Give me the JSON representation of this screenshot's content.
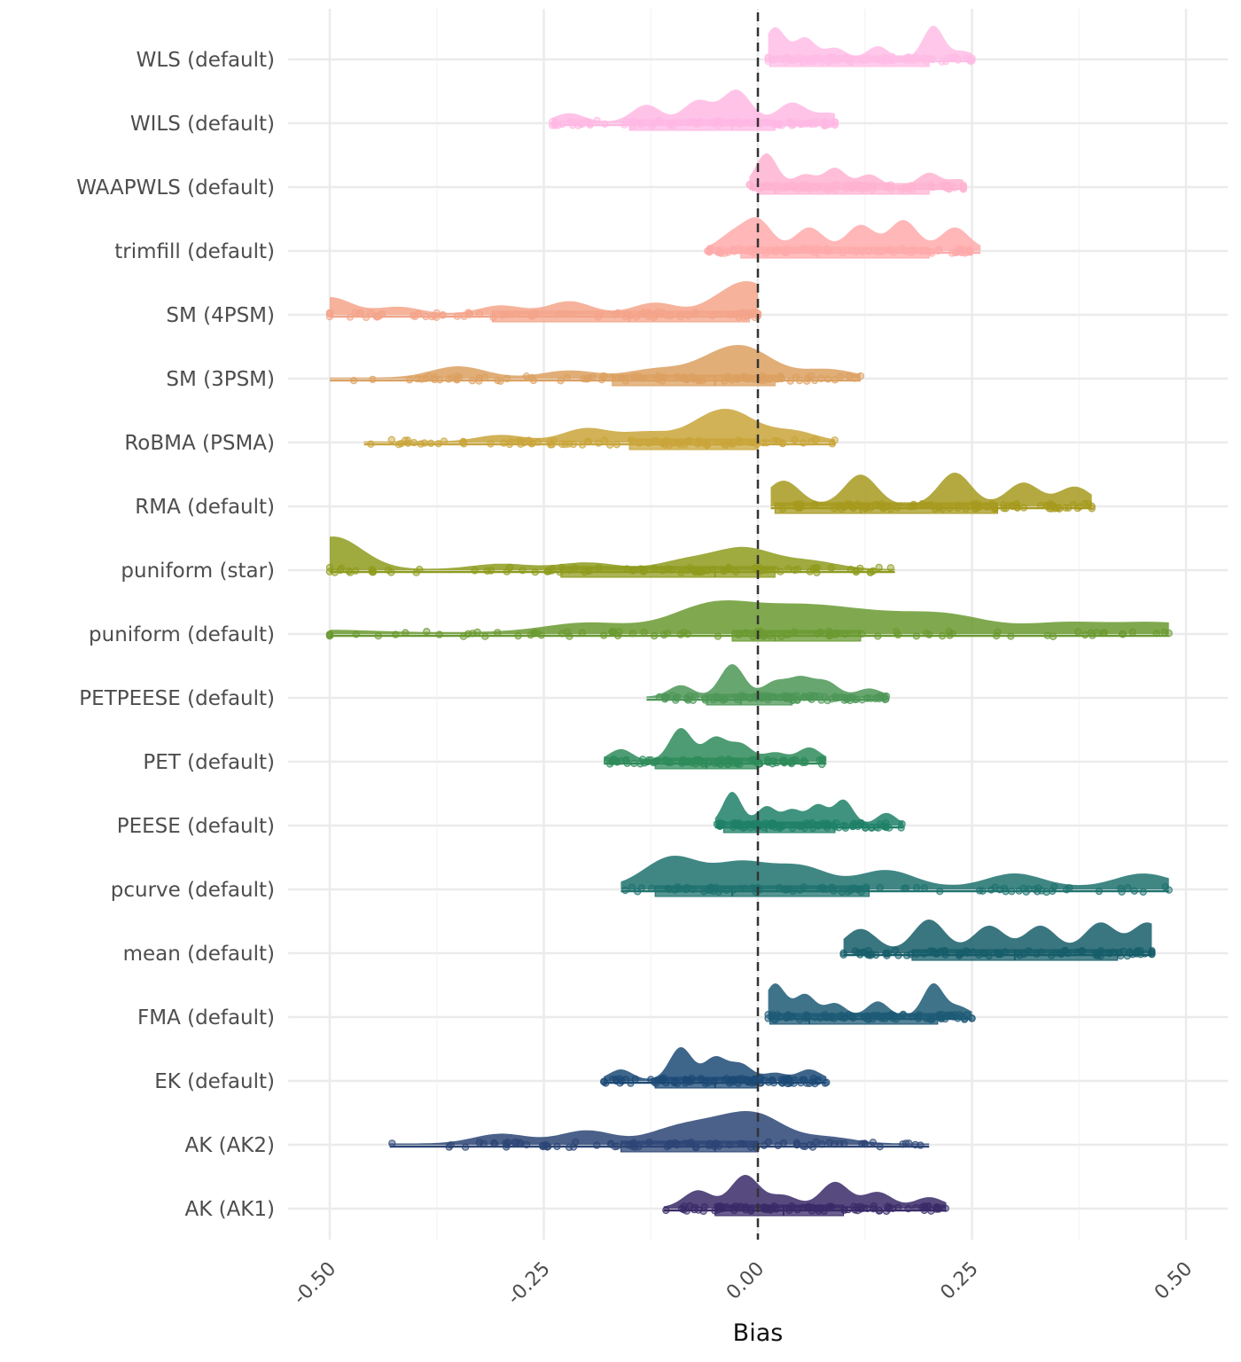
{
  "chart_data": {
    "type": "raincloud",
    "title": "",
    "xlabel": "Bias",
    "ylabel": "",
    "xlim": [
      -0.6,
      0.6
    ],
    "xticks": [
      "-0.50",
      "-0.25",
      "0.00",
      "0.25",
      "0.50"
    ],
    "xtick_values": [
      -0.5,
      -0.25,
      0.0,
      0.25,
      0.5
    ],
    "reference_line": 0.0,
    "grid": true,
    "legend": "none",
    "series": [
      {
        "label": "WLS (default)",
        "color": "#ffbde6",
        "min": 0.012,
        "q1": 0.014,
        "median": 0.05,
        "q3": 0.2,
        "max": 0.25,
        "modes": [
          [
            0.02,
            0.9
          ],
          [
            0.055,
            0.6
          ],
          [
            0.09,
            0.3
          ],
          [
            0.14,
            0.35
          ],
          [
            0.205,
            0.95
          ],
          [
            0.24,
            0.2
          ]
        ]
      },
      {
        "label": "WILS (default)",
        "color": "#ffb8e4",
        "min": -0.24,
        "q1": -0.15,
        "median": -0.03,
        "q3": 0.02,
        "max": 0.09,
        "modes": [
          [
            -0.22,
            0.2
          ],
          [
            -0.13,
            0.4
          ],
          [
            -0.07,
            0.5
          ],
          [
            -0.025,
            0.75
          ],
          [
            0.04,
            0.45
          ],
          [
            0.085,
            0.2
          ]
        ]
      },
      {
        "label": "WAAPWLS (default)",
        "color": "#ffb3d1",
        "min": -0.01,
        "q1": 0.0,
        "median": 0.02,
        "q3": 0.2,
        "max": 0.24,
        "modes": [
          [
            0.01,
            1.0
          ],
          [
            0.055,
            0.35
          ],
          [
            0.09,
            0.55
          ],
          [
            0.13,
            0.35
          ],
          [
            0.2,
            0.4
          ],
          [
            0.235,
            0.2
          ]
        ]
      },
      {
        "label": "trimfill (default)",
        "color": "#ffaaaa",
        "min": -0.06,
        "q1": -0.02,
        "median": 0.07,
        "q3": 0.2,
        "max": 0.26,
        "modes": [
          [
            -0.03,
            0.3
          ],
          [
            0.0,
            0.6
          ],
          [
            0.06,
            0.45
          ],
          [
            0.12,
            0.5
          ],
          [
            0.17,
            0.6
          ],
          [
            0.23,
            0.45
          ]
        ]
      },
      {
        "label": "SM (4PSM)",
        "color": "#f4a48a",
        "min": -0.5,
        "q1": -0.31,
        "median": -0.15,
        "q3": -0.01,
        "max": 0.0,
        "modes": [
          [
            -0.5,
            0.6
          ],
          [
            -0.42,
            0.25
          ],
          [
            -0.3,
            0.3
          ],
          [
            -0.22,
            0.45
          ],
          [
            -0.12,
            0.4
          ],
          [
            -0.04,
            0.5
          ],
          [
            -0.005,
            0.95
          ]
        ]
      },
      {
        "label": "SM (3PSM)",
        "color": "#dca060",
        "min": -0.5,
        "q1": -0.17,
        "median": -0.05,
        "q3": 0.02,
        "max": 0.12,
        "modes": [
          [
            -0.35,
            0.4
          ],
          [
            -0.22,
            0.25
          ],
          [
            -0.12,
            0.3
          ],
          [
            -0.05,
            0.55
          ],
          [
            -0.01,
            0.85
          ],
          [
            0.08,
            0.3
          ]
        ]
      },
      {
        "label": "RoBMA (PSMA)",
        "color": "#c9a53a",
        "min": -0.46,
        "q1": -0.15,
        "median": -0.06,
        "q3": 0.0,
        "max": 0.09,
        "modes": [
          [
            -0.3,
            0.25
          ],
          [
            -0.2,
            0.5
          ],
          [
            -0.13,
            0.35
          ],
          [
            -0.06,
            0.65
          ],
          [
            -0.025,
            0.85
          ],
          [
            0.04,
            0.4
          ]
        ]
      },
      {
        "label": "RMA (default)",
        "color": "#a69a1e",
        "min": 0.015,
        "q1": 0.02,
        "median": 0.12,
        "q3": 0.28,
        "max": 0.39,
        "modes": [
          [
            0.03,
            0.6
          ],
          [
            0.12,
            0.75
          ],
          [
            0.23,
            0.8
          ],
          [
            0.31,
            0.55
          ],
          [
            0.37,
            0.45
          ]
        ]
      },
      {
        "label": "puniform (star)",
        "color": "#8e9b1d",
        "min": -0.5,
        "q1": -0.23,
        "median": -0.05,
        "q3": 0.02,
        "max": 0.16,
        "modes": [
          [
            -0.5,
            1.0
          ],
          [
            -0.48,
            0.25
          ],
          [
            -0.3,
            0.2
          ],
          [
            -0.2,
            0.25
          ],
          [
            -0.08,
            0.35
          ],
          [
            -0.015,
            0.75
          ],
          [
            0.06,
            0.3
          ]
        ]
      },
      {
        "label": "puniform (default)",
        "color": "#6a9a30",
        "min": -0.5,
        "q1": -0.03,
        "median": 0.02,
        "q3": 0.12,
        "max": 0.48,
        "modes": [
          [
            -0.5,
            0.05
          ],
          [
            -0.2,
            0.2
          ],
          [
            -0.05,
            0.6
          ],
          [
            0.05,
            0.45
          ],
          [
            0.13,
            0.3
          ],
          [
            0.22,
            0.35
          ],
          [
            0.36,
            0.2
          ],
          [
            0.47,
            0.2
          ]
        ]
      },
      {
        "label": "PETPEESE (default)",
        "color": "#4c9656",
        "min": -0.13,
        "q1": -0.06,
        "median": -0.02,
        "q3": 0.04,
        "max": 0.15,
        "modes": [
          [
            -0.09,
            0.35
          ],
          [
            -0.03,
            1.0
          ],
          [
            0.02,
            0.45
          ],
          [
            0.05,
            0.55
          ],
          [
            0.08,
            0.45
          ],
          [
            0.13,
            0.25
          ]
        ]
      },
      {
        "label": "PET (default)",
        "color": "#2e8b5a",
        "min": -0.18,
        "q1": -0.12,
        "median": -0.06,
        "q3": 0.0,
        "max": 0.08,
        "modes": [
          [
            -0.16,
            0.35
          ],
          [
            -0.09,
            1.0
          ],
          [
            -0.05,
            0.7
          ],
          [
            -0.02,
            0.5
          ],
          [
            0.02,
            0.25
          ],
          [
            0.06,
            0.4
          ]
        ]
      },
      {
        "label": "PEESE (default)",
        "color": "#1f8068",
        "min": -0.05,
        "q1": -0.04,
        "median": 0.01,
        "q3": 0.09,
        "max": 0.17,
        "modes": [
          [
            -0.03,
            1.0
          ],
          [
            0.01,
            0.55
          ],
          [
            0.04,
            0.45
          ],
          [
            0.07,
            0.6
          ],
          [
            0.1,
            0.75
          ],
          [
            0.15,
            0.35
          ]
        ]
      },
      {
        "label": "pcurve (default)",
        "color": "#1e726e",
        "min": -0.16,
        "q1": -0.12,
        "median": -0.03,
        "q3": 0.13,
        "max": 0.48,
        "modes": [
          [
            -0.1,
            0.45
          ],
          [
            -0.02,
            0.35
          ],
          [
            0.05,
            0.3
          ],
          [
            0.15,
            0.25
          ],
          [
            0.3,
            0.2
          ],
          [
            0.45,
            0.2
          ]
        ]
      },
      {
        "label": "mean (default)",
        "color": "#175e6a",
        "min": 0.1,
        "q1": 0.18,
        "median": 0.3,
        "q3": 0.42,
        "max": 0.46,
        "modes": [
          [
            0.12,
            0.35
          ],
          [
            0.2,
            0.5
          ],
          [
            0.27,
            0.4
          ],
          [
            0.33,
            0.4
          ],
          [
            0.4,
            0.45
          ],
          [
            0.455,
            0.45
          ]
        ]
      },
      {
        "label": "FMA (default)",
        "color": "#1d5a75",
        "min": 0.012,
        "q1": 0.014,
        "median": 0.06,
        "q3": 0.21,
        "max": 0.25,
        "modes": [
          [
            0.02,
            0.9
          ],
          [
            0.055,
            0.6
          ],
          [
            0.09,
            0.35
          ],
          [
            0.14,
            0.4
          ],
          [
            0.205,
            0.9
          ],
          [
            0.235,
            0.25
          ]
        ]
      },
      {
        "label": "EK (default)",
        "color": "#1c4a75",
        "min": -0.18,
        "q1": -0.12,
        "median": -0.05,
        "q3": 0.0,
        "max": 0.08,
        "modes": [
          [
            -0.16,
            0.3
          ],
          [
            -0.09,
            0.95
          ],
          [
            -0.05,
            0.65
          ],
          [
            -0.02,
            0.45
          ],
          [
            0.02,
            0.2
          ],
          [
            0.06,
            0.3
          ]
        ]
      },
      {
        "label": "AK (AK2)",
        "color": "#2c4575",
        "min": -0.43,
        "q1": -0.16,
        "median": -0.05,
        "q3": 0.0,
        "max": 0.2,
        "modes": [
          [
            -0.3,
            0.3
          ],
          [
            -0.2,
            0.4
          ],
          [
            -0.1,
            0.4
          ],
          [
            -0.05,
            0.5
          ],
          [
            0.0,
            0.8
          ],
          [
            0.08,
            0.2
          ]
        ]
      },
      {
        "label": "AK (AK1)",
        "color": "#3a2a68",
        "min": -0.11,
        "q1": -0.05,
        "median": 0.03,
        "q3": 0.1,
        "max": 0.22,
        "modes": [
          [
            -0.07,
            0.5
          ],
          [
            -0.015,
            0.95
          ],
          [
            0.03,
            0.35
          ],
          [
            0.09,
            0.75
          ],
          [
            0.14,
            0.45
          ],
          [
            0.2,
            0.3
          ]
        ]
      }
    ]
  }
}
